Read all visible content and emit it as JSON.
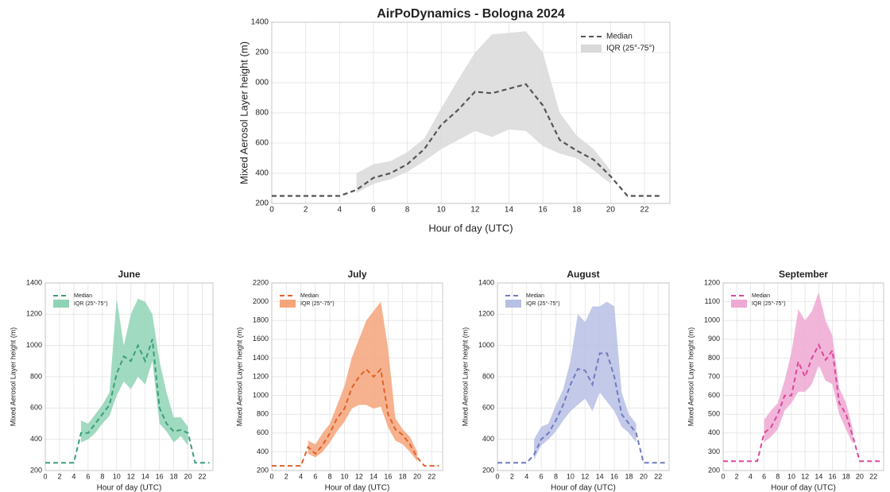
{
  "chart_data": [
    {
      "type": "line",
      "title": "AirPoDynamics - Bologna 2024",
      "xlabel": "Hour of day (UTC)",
      "ylabel": "Mixed Aerosol Layer height (m)",
      "x": [
        0,
        1,
        2,
        3,
        4,
        5,
        6,
        7,
        8,
        9,
        10,
        11,
        12,
        13,
        14,
        15,
        16,
        17,
        18,
        19,
        20,
        21,
        22,
        23
      ],
      "xlim": [
        0,
        23.5
      ],
      "xticks": [
        0,
        2,
        4,
        6,
        8,
        10,
        12,
        14,
        16,
        18,
        20,
        22
      ],
      "ylim": [
        200,
        1400
      ],
      "yticks": [
        200,
        400,
        600,
        800,
        {
          "value": 1000,
          "label": "000"
        },
        {
          "value": 1200,
          "label": "200"
        },
        1400
      ],
      "grid": true,
      "legend": "upper right",
      "series": [
        {
          "name": "Median",
          "color": "#555555",
          "values": [
            250,
            250,
            250,
            250,
            250,
            290,
            370,
            400,
            460,
            560,
            720,
            820,
            940,
            930,
            960,
            990,
            850,
            620,
            550,
            490,
            380,
            250,
            250,
            250
          ]
        },
        {
          "name": "IQR (25°-75°)",
          "color": "#d9d9d9",
          "low": [
            null,
            null,
            null,
            null,
            null,
            270,
            330,
            360,
            410,
            480,
            560,
            620,
            680,
            640,
            690,
            680,
            580,
            530,
            500,
            420,
            330,
            null,
            null,
            null
          ],
          "high": [
            null,
            null,
            null,
            null,
            null,
            400,
            460,
            480,
            540,
            630,
            830,
            1020,
            1200,
            1320,
            1330,
            1340,
            1200,
            800,
            650,
            560,
            420,
            null,
            null,
            null
          ]
        }
      ]
    },
    {
      "type": "line",
      "title": "June",
      "xlabel": "Hour of day (UTC)",
      "ylabel": "Mixed Aerosol Layer height (m)",
      "x": [
        0,
        1,
        2,
        3,
        4,
        5,
        6,
        7,
        8,
        9,
        10,
        11,
        12,
        13,
        14,
        15,
        16,
        17,
        18,
        19,
        20,
        21,
        22,
        23
      ],
      "xlim": [
        0,
        23.5
      ],
      "xticks": [
        0,
        2,
        4,
        6,
        8,
        10,
        12,
        14,
        16,
        18,
        20,
        22
      ],
      "ylim": [
        200,
        1400
      ],
      "yticks": [
        200,
        400,
        600,
        800,
        1000,
        1200,
        1400
      ],
      "grid": true,
      "legend": "upper left",
      "series": [
        {
          "name": "Median",
          "color": "#3a9e7a",
          "values": [
            250,
            250,
            250,
            250,
            250,
            440,
            440,
            500,
            560,
            620,
            820,
            930,
            900,
            1000,
            900,
            1040,
            600,
            500,
            450,
            460,
            440,
            250,
            250,
            250
          ]
        },
        {
          "name": "IQR (25°-75°)",
          "color": "#8fd3b6",
          "low": [
            null,
            null,
            null,
            null,
            null,
            380,
            400,
            440,
            500,
            550,
            680,
            770,
            720,
            800,
            750,
            900,
            500,
            450,
            380,
            420,
            360,
            null,
            null,
            null
          ],
          "high": [
            null,
            null,
            null,
            null,
            null,
            520,
            500,
            560,
            620,
            700,
            1300,
            1000,
            1200,
            1300,
            1280,
            1200,
            900,
            700,
            540,
            540,
            480,
            null,
            null,
            null
          ]
        }
      ]
    },
    {
      "type": "line",
      "title": "July",
      "xlabel": "Hour of day (UTC)",
      "ylabel": "Mixed Aerosol Layer height (m)",
      "x": [
        0,
        1,
        2,
        3,
        4,
        5,
        6,
        7,
        8,
        9,
        10,
        11,
        12,
        13,
        14,
        15,
        16,
        17,
        18,
        19,
        20,
        21,
        22,
        23
      ],
      "xlim": [
        0,
        23.5
      ],
      "xticks": [
        0,
        2,
        4,
        6,
        8,
        10,
        12,
        14,
        16,
        18,
        20,
        22
      ],
      "ylim": [
        200,
        2200
      ],
      "yticks": [
        200,
        400,
        600,
        800,
        1000,
        1200,
        1400,
        1600,
        1800,
        2000,
        2200
      ],
      "grid": true,
      "legend": "upper left",
      "series": [
        {
          "name": "Median",
          "color": "#e0622a",
          "values": [
            250,
            250,
            250,
            250,
            250,
            450,
            380,
            470,
            600,
            760,
            860,
            1080,
            1200,
            1280,
            1200,
            1280,
            800,
            640,
            580,
            480,
            340,
            250,
            250,
            250
          ]
        },
        {
          "name": "IQR (25°-75°)",
          "color": "#f5a57a",
          "low": [
            null,
            null,
            null,
            null,
            null,
            380,
            340,
            400,
            500,
            620,
            720,
            860,
            900,
            900,
            860,
            880,
            660,
            520,
            480,
            400,
            300,
            null,
            null,
            null
          ],
          "high": [
            null,
            null,
            null,
            null,
            null,
            520,
            480,
            600,
            700,
            900,
            1100,
            1400,
            1600,
            1800,
            1900,
            2000,
            1500,
            760,
            640,
            560,
            400,
            null,
            null,
            null
          ]
        }
      ]
    },
    {
      "type": "line",
      "title": "August",
      "xlabel": "Hour of day (UTC)",
      "ylabel": "Mixed Aerosol Layer height (m)",
      "x": [
        0,
        1,
        2,
        3,
        4,
        5,
        6,
        7,
        8,
        9,
        10,
        11,
        12,
        13,
        14,
        15,
        16,
        17,
        18,
        19,
        20,
        21,
        22,
        23
      ],
      "xlim": [
        0,
        23.5
      ],
      "xticks": [
        0,
        2,
        4,
        6,
        8,
        10,
        12,
        14,
        16,
        18,
        20,
        22
      ],
      "ylim": [
        200,
        1400
      ],
      "yticks": [
        200,
        400,
        600,
        800,
        1000,
        1200,
        1400
      ],
      "grid": true,
      "legend": "upper left",
      "series": [
        {
          "name": "Median",
          "color": "#6f7bc2",
          "values": [
            250,
            250,
            250,
            250,
            250,
            300,
            400,
            440,
            520,
            620,
            750,
            850,
            840,
            750,
            950,
            950,
            800,
            560,
            500,
            440,
            250,
            250,
            250,
            250
          ]
        },
        {
          "name": "IQR (25°-75°)",
          "color": "#b8bfe4",
          "low": [
            null,
            null,
            null,
            null,
            null,
            270,
            360,
            400,
            450,
            520,
            580,
            620,
            660,
            580,
            700,
            640,
            580,
            480,
            440,
            380,
            null,
            null,
            null,
            null
          ],
          "high": [
            null,
            null,
            null,
            null,
            null,
            400,
            480,
            500,
            620,
            720,
            900,
            1200,
            1150,
            1250,
            1250,
            1280,
            1250,
            700,
            560,
            500,
            null,
            null,
            null,
            null
          ]
        }
      ]
    },
    {
      "type": "line",
      "title": "September",
      "xlabel": "Hour of day (UTC)",
      "ylabel": "Mixed Aerosol Layer height (m)",
      "x": [
        0,
        1,
        2,
        3,
        4,
        5,
        6,
        7,
        8,
        9,
        10,
        11,
        12,
        13,
        14,
        15,
        16,
        17,
        18,
        19,
        20,
        21,
        22,
        23
      ],
      "xlim": [
        0,
        23.5
      ],
      "xticks": [
        0,
        2,
        4,
        6,
        8,
        10,
        12,
        14,
        16,
        18,
        20,
        22
      ],
      "ylim": [
        200,
        1200
      ],
      "yticks": [
        200,
        300,
        400,
        500,
        600,
        700,
        800,
        900,
        1000,
        1100,
        1200
      ],
      "grid": true,
      "legend": "upper left",
      "series": [
        {
          "name": "Median",
          "color": "#d9489a",
          "values": [
            250,
            250,
            250,
            250,
            250,
            250,
            400,
            430,
            500,
            600,
            600,
            780,
            700,
            800,
            870,
            790,
            840,
            560,
            500,
            380,
            250,
            250,
            250,
            250
          ]
        },
        {
          "name": "IQR (25°-75°)",
          "color": "#f0a8d4",
          "low": [
            null,
            null,
            null,
            null,
            null,
            null,
            350,
            380,
            420,
            520,
            560,
            620,
            620,
            660,
            760,
            680,
            660,
            500,
            420,
            340,
            null,
            null,
            null,
            null
          ],
          "high": [
            null,
            null,
            null,
            null,
            null,
            null,
            470,
            520,
            560,
            680,
            830,
            1060,
            1000,
            1050,
            1150,
            1000,
            920,
            640,
            560,
            420,
            null,
            null,
            null,
            null
          ]
        }
      ]
    }
  ]
}
